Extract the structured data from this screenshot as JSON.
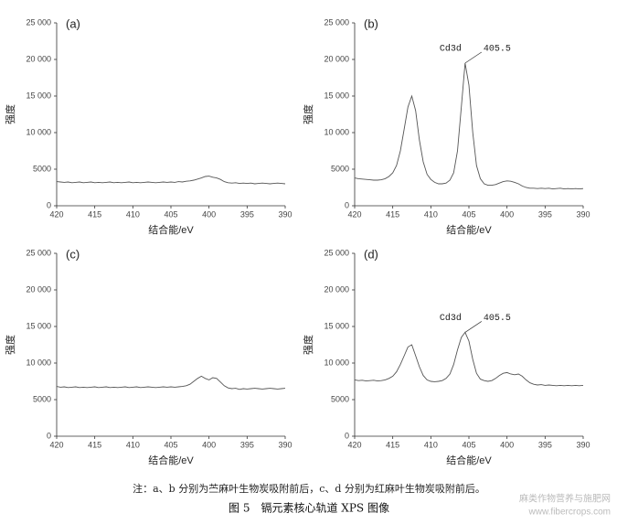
{
  "chart_data": [
    {
      "type": "line",
      "panel": "(a)",
      "xlabel": "结合能/eV",
      "ylabel": "强度",
      "color": "#555555",
      "xlim": [
        420,
        390
      ],
      "xticks": [
        420,
        415,
        410,
        405,
        400,
        395,
        390
      ],
      "ylim": [
        0,
        25000
      ],
      "yticks": [
        0,
        5000,
        {
          "value": 10000,
          "label": "10 000"
        },
        {
          "value": 15000,
          "label": "15 000"
        },
        {
          "value": 20000,
          "label": "20 000"
        },
        {
          "value": 25000,
          "label": "25 000"
        }
      ],
      "x": [
        420,
        419.5,
        419,
        418.5,
        418,
        417.5,
        417,
        416.5,
        416,
        415.5,
        415,
        414.5,
        414,
        413.5,
        413,
        412.5,
        412,
        411.5,
        411,
        410.5,
        410,
        409.5,
        409,
        408.5,
        408,
        407.5,
        407,
        406.5,
        406,
        405.5,
        405,
        404.5,
        404,
        403.5,
        403,
        402.5,
        402,
        401.5,
        401,
        400.5,
        400,
        399.5,
        399,
        398.5,
        398,
        397.5,
        397,
        396.5,
        396,
        395.5,
        395,
        394.5,
        394,
        393.5,
        393,
        392.5,
        392,
        391.5,
        391,
        390.5,
        390
      ],
      "values": [
        3300,
        3250,
        3200,
        3250,
        3150,
        3200,
        3250,
        3150,
        3200,
        3250,
        3150,
        3200,
        3150,
        3200,
        3250,
        3150,
        3200,
        3150,
        3200,
        3250,
        3150,
        3200,
        3150,
        3200,
        3250,
        3200,
        3150,
        3200,
        3250,
        3200,
        3250,
        3200,
        3300,
        3250,
        3350,
        3400,
        3500,
        3650,
        3800,
        4000,
        4050,
        3900,
        3800,
        3600,
        3300,
        3150,
        3100,
        3150,
        3050,
        3100,
        3050,
        3100,
        3000,
        3050,
        3100,
        3050,
        3000,
        3050,
        3100,
        3050,
        3000
      ]
    },
    {
      "type": "line",
      "panel": "(b)",
      "xlabel": "结合能/eV",
      "ylabel": "强度",
      "color": "#555555",
      "peak_label": "Cd3d",
      "peak_energy_label": "405.5",
      "xlim": [
        420,
        390
      ],
      "xticks": [
        420,
        415,
        410,
        405,
        400,
        395,
        390
      ],
      "ylim": [
        0,
        25000
      ],
      "yticks": [
        0,
        5000,
        {
          "value": 10000,
          "label": "10 000"
        },
        {
          "value": 15000,
          "label": "15 000"
        },
        {
          "value": 20000,
          "label": "20 000"
        },
        {
          "value": 25000,
          "label": "25 000"
        }
      ],
      "x": [
        420,
        419.5,
        419,
        418.5,
        418,
        417.5,
        417,
        416.5,
        416,
        415.5,
        415,
        414.5,
        414,
        413.5,
        413,
        412.5,
        412,
        411.5,
        411,
        410.5,
        410,
        409.5,
        409,
        408.5,
        408,
        407.5,
        407,
        406.5,
        406,
        405.5,
        405,
        404.5,
        404,
        403.5,
        403,
        402.5,
        402,
        401.5,
        401,
        400.5,
        400,
        399.5,
        399,
        398.5,
        398,
        397.5,
        397,
        396.5,
        396,
        395.5,
        395,
        394.5,
        394,
        393.5,
        393,
        392.5,
        392,
        391.5,
        391,
        390.5,
        390
      ],
      "values": [
        3800,
        3700,
        3650,
        3600,
        3550,
        3500,
        3500,
        3550,
        3700,
        4000,
        4500,
        5500,
        7500,
        10500,
        13500,
        15000,
        13000,
        9000,
        6000,
        4300,
        3600,
        3200,
        3000,
        3000,
        3100,
        3500,
        4500,
        7500,
        13500,
        19500,
        16500,
        10000,
        5500,
        3700,
        3000,
        2800,
        2800,
        2900,
        3100,
        3300,
        3400,
        3350,
        3200,
        3000,
        2700,
        2500,
        2400,
        2400,
        2350,
        2400,
        2350,
        2400,
        2300,
        2350,
        2400,
        2300,
        2350,
        2300,
        2350,
        2300,
        2350
      ]
    },
    {
      "type": "line",
      "panel": "(c)",
      "xlabel": "结合能/eV",
      "ylabel": "强度",
      "color": "#555555",
      "xlim": [
        420,
        390
      ],
      "xticks": [
        420,
        415,
        410,
        405,
        400,
        395,
        390
      ],
      "ylim": [
        0,
        25000
      ],
      "yticks": [
        0,
        5000,
        {
          "value": 10000,
          "label": "10 000"
        },
        {
          "value": 15000,
          "label": "15 000"
        },
        {
          "value": 20000,
          "label": "20 000"
        },
        {
          "value": 25000,
          "label": "25 000"
        }
      ],
      "x": [
        420,
        419.5,
        419,
        418.5,
        418,
        417.5,
        417,
        416.5,
        416,
        415.5,
        415,
        414.5,
        414,
        413.5,
        413,
        412.5,
        412,
        411.5,
        411,
        410.5,
        410,
        409.5,
        409,
        408.5,
        408,
        407.5,
        407,
        406.5,
        406,
        405.5,
        405,
        404.5,
        404,
        403.5,
        403,
        402.5,
        402,
        401.5,
        401,
        400.5,
        400,
        399.5,
        399,
        398.5,
        398,
        397.5,
        397,
        396.5,
        396,
        395.5,
        395,
        394.5,
        394,
        393.5,
        393,
        392.5,
        392,
        391.5,
        391,
        390.5,
        390
      ],
      "values": [
        6800,
        6700,
        6750,
        6650,
        6700,
        6750,
        6650,
        6700,
        6650,
        6700,
        6750,
        6650,
        6700,
        6750,
        6650,
        6700,
        6650,
        6700,
        6750,
        6650,
        6700,
        6750,
        6650,
        6700,
        6750,
        6700,
        6650,
        6700,
        6750,
        6700,
        6750,
        6700,
        6750,
        6800,
        6900,
        7100,
        7500,
        7900,
        8200,
        7900,
        7700,
        8000,
        7900,
        7400,
        6900,
        6600,
        6500,
        6550,
        6400,
        6500,
        6450,
        6500,
        6550,
        6500,
        6450,
        6500,
        6550,
        6500,
        6450,
        6500,
        6550
      ]
    },
    {
      "type": "line",
      "panel": "(d)",
      "xlabel": "结合能/eV",
      "ylabel": "强度",
      "color": "#555555",
      "peak_label": "Cd3d",
      "peak_energy_label": "405.5",
      "xlim": [
        420,
        390
      ],
      "xticks": [
        420,
        415,
        410,
        405,
        400,
        395,
        390
      ],
      "ylim": [
        0,
        25000
      ],
      "yticks": [
        0,
        5000,
        {
          "value": 10000,
          "label": "10 000"
        },
        {
          "value": 15000,
          "label": "15 000"
        },
        {
          "value": 20000,
          "label": "20 000"
        },
        {
          "value": 25000,
          "label": "25 000"
        }
      ],
      "x": [
        420,
        419.5,
        419,
        418.5,
        418,
        417.5,
        417,
        416.5,
        416,
        415.5,
        415,
        414.5,
        414,
        413.5,
        413,
        412.5,
        412,
        411.5,
        411,
        410.5,
        410,
        409.5,
        409,
        408.5,
        408,
        407.5,
        407,
        406.5,
        406,
        405.5,
        405,
        404.5,
        404,
        403.5,
        403,
        402.5,
        402,
        401.5,
        401,
        400.5,
        400,
        399.5,
        399,
        398.5,
        398,
        397.5,
        397,
        396.5,
        396,
        395.5,
        395,
        394.5,
        394,
        393.5,
        393,
        392.5,
        392,
        391.5,
        391,
        390.5,
        390
      ],
      "values": [
        7700,
        7600,
        7650,
        7550,
        7600,
        7650,
        7550,
        7600,
        7700,
        7900,
        8200,
        8800,
        9800,
        11000,
        12200,
        12500,
        11000,
        9500,
        8300,
        7700,
        7500,
        7450,
        7500,
        7600,
        7900,
        8500,
        9800,
        11800,
        13500,
        14200,
        13000,
        10500,
        8600,
        7800,
        7600,
        7500,
        7600,
        7900,
        8300,
        8600,
        8700,
        8500,
        8400,
        8500,
        8200,
        7700,
        7300,
        7100,
        7000,
        7050,
        6950,
        7000,
        6950,
        6900,
        6950,
        6900,
        6950,
        6900,
        6950,
        6900,
        6950
      ]
    }
  ],
  "caption": "注：a、b 分别为苎麻叶生物炭吸附前后，c、d 分别为红麻叶生物炭吸附前后。",
  "figure_title": "图 5　镉元素核心轨道 XPS 图像",
  "watermark": [
    "麻类作物营养与施肥网",
    "www.fibercrops.com"
  ]
}
